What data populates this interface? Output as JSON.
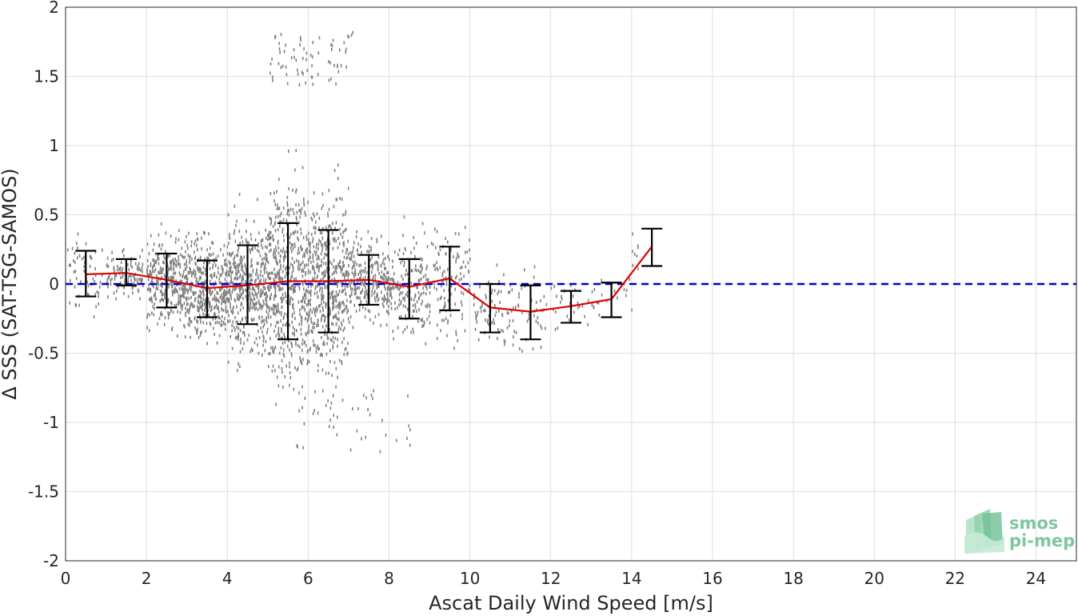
{
  "chart_data": {
    "type": "scatter",
    "xlabel": "Ascat Daily Wind Speed [m/s]",
    "ylabel": "Δ SSS (SAT-TSG-SAMOS)",
    "xlim": [
      0,
      25
    ],
    "ylim": [
      -2,
      2
    ],
    "xticks": [
      0,
      2,
      4,
      6,
      8,
      10,
      12,
      14,
      16,
      18,
      20,
      22,
      24
    ],
    "yticks": [
      2,
      1.5,
      1,
      0.5,
      0,
      -0.5,
      -1,
      -1.5,
      -2
    ],
    "ytick_labels": [
      "2",
      "1.5",
      "1",
      "0.5",
      "0",
      "-0.5",
      "-1",
      "-1.5",
      "-2"
    ],
    "grid": true,
    "reference_line": {
      "y": 0,
      "style": "dashed",
      "color": "#0000d0"
    },
    "scatter_color": "#808080",
    "mean_line_color": "#e00000",
    "errorbar_color": "#000000",
    "binned_stats": [
      {
        "x": 0.5,
        "mean": 0.07,
        "lower": -0.09,
        "upper": 0.24
      },
      {
        "x": 1.5,
        "mean": 0.08,
        "lower": -0.01,
        "upper": 0.18
      },
      {
        "x": 2.5,
        "mean": 0.03,
        "lower": -0.17,
        "upper": 0.22
      },
      {
        "x": 3.5,
        "mean": -0.03,
        "lower": -0.24,
        "upper": 0.17
      },
      {
        "x": 4.5,
        "mean": -0.01,
        "lower": -0.29,
        "upper": 0.28
      },
      {
        "x": 5.5,
        "mean": 0.02,
        "lower": -0.4,
        "upper": 0.44
      },
      {
        "x": 6.5,
        "mean": 0.02,
        "lower": -0.35,
        "upper": 0.39
      },
      {
        "x": 7.5,
        "mean": 0.03,
        "lower": -0.15,
        "upper": 0.21
      },
      {
        "x": 8.5,
        "mean": -0.02,
        "lower": -0.25,
        "upper": 0.18
      },
      {
        "x": 9.5,
        "mean": 0.04,
        "lower": -0.19,
        "upper": 0.27
      },
      {
        "x": 10.5,
        "mean": -0.17,
        "lower": -0.35,
        "upper": 0.0
      },
      {
        "x": 11.5,
        "mean": -0.2,
        "lower": -0.4,
        "upper": -0.01
      },
      {
        "x": 12.5,
        "mean": -0.16,
        "lower": -0.28,
        "upper": -0.05
      },
      {
        "x": 13.5,
        "mean": -0.11,
        "lower": -0.24,
        "upper": 0.01
      },
      {
        "x": 14.5,
        "mean": 0.27,
        "lower": 0.13,
        "upper": 0.4
      }
    ]
  },
  "logo": {
    "line1": "smos",
    "line2": "pi-mep",
    "color": "#7fc6a0"
  }
}
